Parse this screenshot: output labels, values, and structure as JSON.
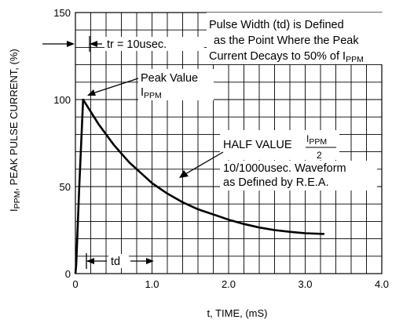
{
  "chart_data": {
    "type": "line",
    "xlabel": "t, TIME, (mS)",
    "ylabel": "I",
    "ylabel_sub": "PPM",
    "ylabel_rest": ", PEAK PULSE CURRENT, (%)",
    "xlim": [
      0,
      4.0
    ],
    "ylim": [
      0,
      150
    ],
    "x_ticks": [
      0,
      1.0,
      2.0,
      3.0,
      4.0
    ],
    "x_tick_labels": [
      "0",
      "1.0",
      "2.0",
      "3.0",
      "4.0"
    ],
    "y_ticks": [
      0,
      50,
      100,
      150
    ],
    "y_tick_labels": [
      "0",
      "50",
      "100",
      "150"
    ],
    "grid": true,
    "series": [
      {
        "x": [
          0.0,
          0.01,
          0.05,
          0.1,
          0.2,
          0.3,
          0.4,
          0.5,
          0.6,
          0.7,
          0.8,
          0.9,
          1.0,
          1.2,
          1.4,
          1.6,
          1.8,
          2.0,
          2.2,
          2.4,
          2.6,
          2.8,
          3.0,
          3.25
        ],
        "y": [
          0,
          5,
          50,
          100,
          93,
          86,
          80,
          74,
          69,
          64,
          60,
          56,
          52,
          46,
          41,
          37,
          34,
          31,
          28.5,
          26.5,
          25,
          24,
          23.2,
          22.8
        ]
      }
    ],
    "annotations": {
      "tr": "tr = 10usec.",
      "pulse_width_line1": "Pulse Width (td) is Defined",
      "pulse_width_line2": "as the Point Where the Peak",
      "pulse_width_line3": "Current Decays to 50% of I",
      "pulse_width_line3_sub": "PPM",
      "peak_line1": "Peak Value",
      "peak_line2": "I",
      "peak_line2_sub": "PPM",
      "half_value": "HALF VALUE",
      "half_num": "I",
      "half_num_sub": "PPM",
      "half_den": "2",
      "waveform_line1": "10/1000usec. Waveform",
      "waveform_line2": "as Defined by R.E.A.",
      "td": "td"
    }
  }
}
